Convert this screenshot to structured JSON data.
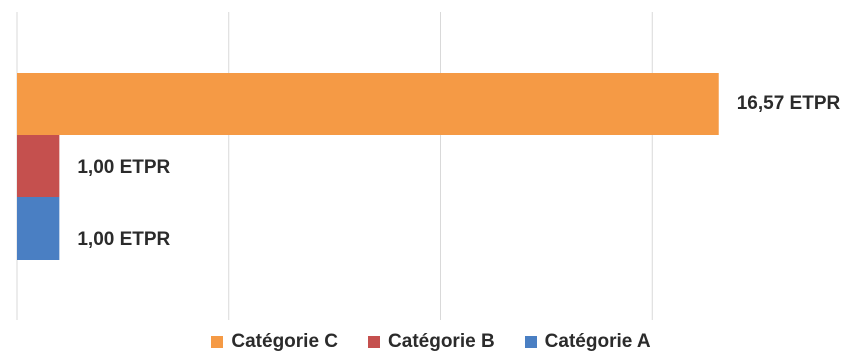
{
  "chart_data": {
    "type": "bar",
    "orientation": "horizontal",
    "title": "",
    "xlabel": "",
    "ylabel": "",
    "xlim": [
      0,
      20
    ],
    "grid": true,
    "legend_position": "bottom",
    "series": [
      {
        "name": "Catégorie C",
        "value": 16.57,
        "label": "16,57 ETPR",
        "color": "#f59a45"
      },
      {
        "name": "Catégorie B",
        "value": 1.0,
        "label": "1,00 ETPR",
        "color": "#c5504e"
      },
      {
        "name": "Catégorie A",
        "value": 1.0,
        "label": "1,00 ETPR",
        "color": "#4a7fc3"
      }
    ]
  }
}
